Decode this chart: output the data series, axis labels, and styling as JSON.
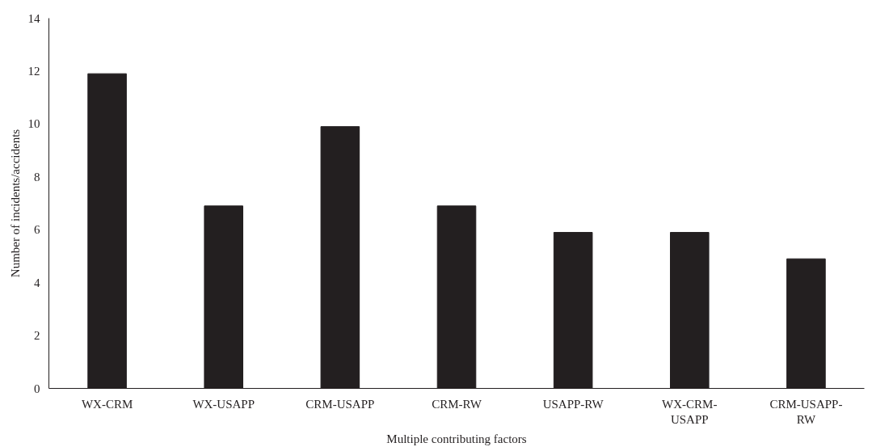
{
  "chart_data": {
    "type": "bar",
    "xlabel": "Multiple contributing factors",
    "ylabel": "Number of incidents/accidents",
    "categories": [
      "WX-CRM",
      "WX-USAPP",
      "CRM-USAPP",
      "CRM-RW",
      "USAPP-RW",
      "WX-CRM-USAPP",
      "CRM-USAPP-RW"
    ],
    "values": [
      11.9,
      6.9,
      9.9,
      6.9,
      5.9,
      5.9,
      4.9
    ],
    "color": "#231f20",
    "ylim": [
      0,
      14
    ],
    "yticks": [
      0,
      2,
      4,
      6,
      8,
      10,
      12,
      14
    ],
    "grid": false
  }
}
